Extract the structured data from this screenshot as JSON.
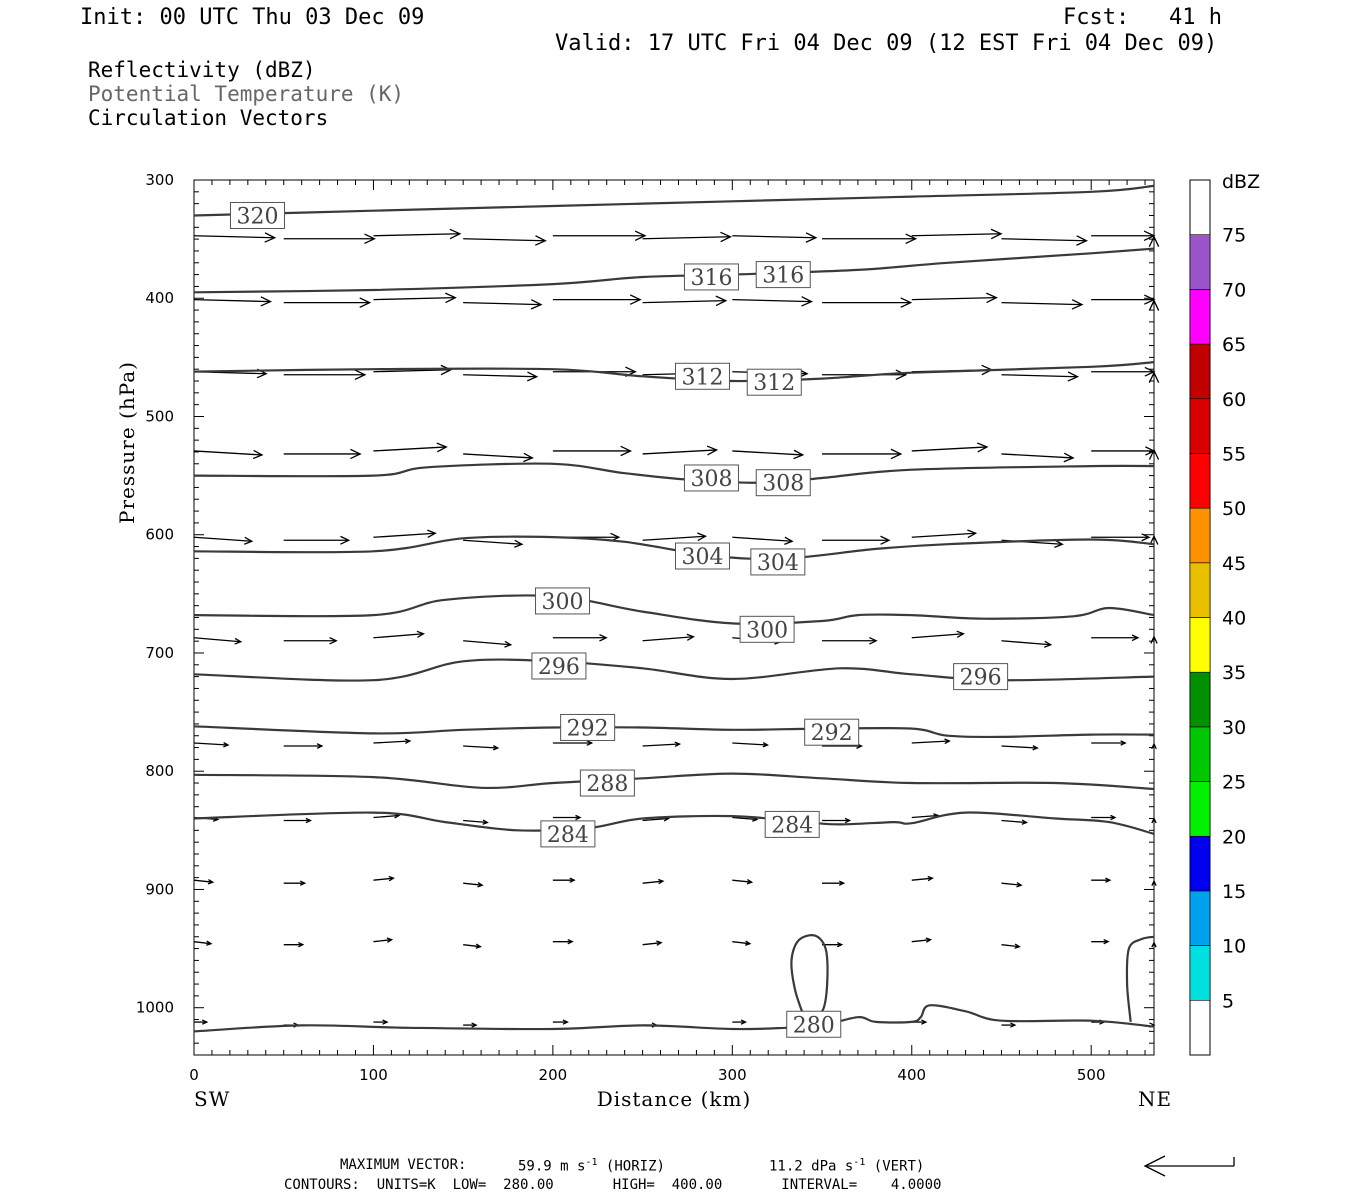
{
  "header": {
    "init": "Init: 00 UTC Thu 03 Dec 09",
    "fcst": "Fcst:   41 h",
    "valid": "Valid: 17 UTC Fri 04 Dec 09 (12 EST Fri 04 Dec 09)"
  },
  "fields": {
    "f1": "Reflectivity (dBZ)",
    "f2": "Potential Temperature (K)",
    "f3": "Circulation Vectors"
  },
  "footer": {
    "max_vector_label": "MAXIMUM VECTOR:",
    "max_horiz": "59.9 m s",
    "horiz_tag": "(HORIZ)",
    "max_vert": "11.2 dPa s",
    "vert_tag": "(VERT)",
    "exp": "-1",
    "contours": "CONTOURS:  UNITS=K  LOW=  280.00       HIGH=  400.00       INTERVAL=    4.0000"
  },
  "colorbar": {
    "unit": "dBZ",
    "labels": [
      "5",
      "10",
      "15",
      "20",
      "25",
      "30",
      "35",
      "40",
      "45",
      "50",
      "55",
      "60",
      "65",
      "70",
      "75"
    ],
    "colors": [
      "#00e0e0",
      "#00a0f0",
      "#0000f0",
      "#00f000",
      "#00c800",
      "#009000",
      "#ffff00",
      "#e8c000",
      "#ff9000",
      "#ff0000",
      "#d80000",
      "#c00000",
      "#ff00ff",
      "#9955c9"
    ]
  },
  "chart_data": {
    "type": "line",
    "title": "",
    "xlabel": "Distance (km)",
    "ylabel": "Pressure (hPa)",
    "xlim": [
      0,
      535
    ],
    "ylim": [
      1040,
      300
    ],
    "xticks": [
      0,
      100,
      200,
      300,
      400,
      500
    ],
    "yticks": [
      300,
      400,
      500,
      600,
      700,
      800,
      900,
      1000
    ],
    "x_end_labels": {
      "left": "SW",
      "right": "NE"
    },
    "contours": [
      {
        "level": 320,
        "pts": [
          [
            0,
            330
          ],
          [
            100,
            326
          ],
          [
            200,
            322
          ],
          [
            300,
            318
          ],
          [
            400,
            314
          ],
          [
            500,
            310
          ],
          [
            535,
            305
          ]
        ],
        "labels": [
          {
            "text": "320",
            "x": 22,
            "p": 330
          }
        ]
      },
      {
        "level": 316,
        "pts": [
          [
            0,
            395
          ],
          [
            100,
            393
          ],
          [
            200,
            388
          ],
          [
            250,
            382
          ],
          [
            300,
            380
          ],
          [
            370,
            376
          ],
          [
            420,
            370
          ],
          [
            500,
            362
          ],
          [
            535,
            358
          ]
        ],
        "labels": [
          {
            "text": "316",
            "x": 275,
            "p": 382
          },
          {
            "text": "316",
            "x": 315,
            "p": 380
          }
        ]
      },
      {
        "level": 312,
        "pts": [
          [
            0,
            462
          ],
          [
            100,
            460
          ],
          [
            200,
            460
          ],
          [
            250,
            466
          ],
          [
            300,
            470
          ],
          [
            350,
            468
          ],
          [
            400,
            463
          ],
          [
            500,
            458
          ],
          [
            535,
            454
          ]
        ],
        "labels": [
          {
            "text": "312",
            "x": 270,
            "p": 466
          },
          {
            "text": "312",
            "x": 310,
            "p": 471
          }
        ]
      },
      {
        "level": 308,
        "pts": [
          [
            0,
            550
          ],
          [
            100,
            550
          ],
          [
            130,
            543
          ],
          [
            200,
            540
          ],
          [
            240,
            548
          ],
          [
            280,
            554
          ],
          [
            320,
            556
          ],
          [
            350,
            552
          ],
          [
            400,
            545
          ],
          [
            500,
            542
          ],
          [
            535,
            542
          ]
        ],
        "labels": [
          {
            "text": "308",
            "x": 275,
            "p": 552
          },
          {
            "text": "308",
            "x": 315,
            "p": 556
          }
        ]
      },
      {
        "level": 304,
        "pts": [
          [
            0,
            614
          ],
          [
            100,
            614
          ],
          [
            150,
            603
          ],
          [
            200,
            602
          ],
          [
            240,
            606
          ],
          [
            290,
            618
          ],
          [
            330,
            620
          ],
          [
            380,
            612
          ],
          [
            420,
            608
          ],
          [
            500,
            604
          ],
          [
            535,
            608
          ]
        ],
        "labels": [
          {
            "text": "304",
            "x": 270,
            "p": 618
          },
          {
            "text": "304",
            "x": 312,
            "p": 623
          }
        ]
      },
      {
        "level": 300,
        "pts": [
          [
            0,
            668
          ],
          [
            100,
            668
          ],
          [
            140,
            655
          ],
          [
            200,
            652
          ],
          [
            250,
            665
          ],
          [
            300,
            675
          ],
          [
            350,
            673
          ],
          [
            370,
            668
          ],
          [
            400,
            668
          ],
          [
            440,
            671
          ],
          [
            490,
            669
          ],
          [
            510,
            662
          ],
          [
            535,
            668
          ]
        ],
        "labels": [
          {
            "text": "300",
            "x": 192,
            "p": 656
          },
          {
            "text": "300",
            "x": 306,
            "p": 680
          }
        ]
      },
      {
        "level": 296,
        "pts": [
          [
            0,
            718
          ],
          [
            100,
            723
          ],
          [
            150,
            707
          ],
          [
            200,
            707
          ],
          [
            250,
            713
          ],
          [
            300,
            722
          ],
          [
            360,
            713
          ],
          [
            400,
            718
          ],
          [
            450,
            723
          ],
          [
            535,
            720
          ]
        ],
        "labels": [
          {
            "text": "296",
            "x": 190,
            "p": 711
          },
          {
            "text": "296",
            "x": 425,
            "p": 720
          }
        ]
      },
      {
        "level": 292,
        "pts": [
          [
            0,
            762
          ],
          [
            100,
            768
          ],
          [
            150,
            765
          ],
          [
            200,
            763
          ],
          [
            250,
            763
          ],
          [
            300,
            765
          ],
          [
            350,
            764
          ],
          [
            400,
            764
          ],
          [
            420,
            770
          ],
          [
            450,
            771
          ],
          [
            500,
            769
          ],
          [
            535,
            769
          ]
        ],
        "labels": [
          {
            "text": "292",
            "x": 206,
            "p": 763
          },
          {
            "text": "292",
            "x": 342,
            "p": 767
          }
        ]
      },
      {
        "level": 288,
        "pts": [
          [
            0,
            803
          ],
          [
            100,
            805
          ],
          [
            160,
            814
          ],
          [
            200,
            810
          ],
          [
            250,
            806
          ],
          [
            300,
            802
          ],
          [
            350,
            806
          ],
          [
            400,
            810
          ],
          [
            480,
            810
          ],
          [
            535,
            815
          ]
        ],
        "labels": [
          {
            "text": "288",
            "x": 217,
            "p": 810
          }
        ]
      },
      {
        "level": 284,
        "pts": [
          [
            0,
            840
          ],
          [
            100,
            835
          ],
          [
            140,
            843
          ],
          [
            180,
            850
          ],
          [
            220,
            848
          ],
          [
            250,
            840
          ],
          [
            300,
            838
          ],
          [
            340,
            843
          ],
          [
            360,
            845
          ],
          [
            390,
            843
          ],
          [
            400,
            844
          ],
          [
            430,
            835
          ],
          [
            480,
            840
          ],
          [
            510,
            843
          ],
          [
            535,
            853
          ]
        ],
        "labels": [
          {
            "text": "284",
            "x": 195,
            "p": 853
          },
          {
            "text": "284",
            "x": 320,
            "p": 845
          }
        ]
      },
      {
        "level": 280,
        "pts": [
          [
            0,
            1020
          ],
          [
            60,
            1015
          ],
          [
            120,
            1017
          ],
          [
            200,
            1018
          ],
          [
            250,
            1015
          ],
          [
            300,
            1018
          ],
          [
            330,
            1017
          ],
          [
            350,
            1015
          ],
          [
            370,
            1008
          ],
          [
            380,
            1012
          ],
          [
            400,
            1012
          ],
          [
            405,
            1008
          ],
          [
            410,
            998
          ],
          [
            430,
            1003
          ],
          [
            450,
            1011
          ],
          [
            500,
            1011
          ],
          [
            535,
            1016
          ]
        ],
        "labels": [
          {
            "text": "280",
            "x": 332,
            "p": 1014
          }
        ]
      }
    ],
    "closed_contours": [
      {
        "level": 280,
        "pts": [
          [
            340,
            1008
          ],
          [
            335,
            985
          ],
          [
            333,
            960
          ],
          [
            337,
            943
          ],
          [
            346,
            939
          ],
          [
            352,
            950
          ],
          [
            353,
            975
          ],
          [
            351,
            1000
          ],
          [
            345,
            1012
          ]
        ]
      },
      {
        "level": 280,
        "pts": [
          [
            522,
            1012
          ],
          [
            520,
            980
          ],
          [
            521,
            950
          ],
          [
            528,
            942
          ],
          [
            535,
            940
          ]
        ]
      }
    ],
    "vector_rows": [
      {
        "p": 348,
        "dx": 95,
        "dp": -1
      },
      {
        "p": 402,
        "dx": 90,
        "dp": -1
      },
      {
        "p": 463,
        "dx": 85,
        "dp": -1
      },
      {
        "p": 530,
        "dx": 80,
        "dp": -2
      },
      {
        "p": 603,
        "dx": 68,
        "dp": -2
      },
      {
        "p": 688,
        "dx": 55,
        "dp": -2
      },
      {
        "p": 777,
        "dx": 40,
        "dp": -1
      },
      {
        "p": 840,
        "dx": 28,
        "dp": -1
      },
      {
        "p": 893,
        "dx": 22,
        "dp": -1
      },
      {
        "p": 945,
        "dx": 20,
        "dp": -1
      },
      {
        "p": 1013,
        "dx": 15,
        "dp": 0
      }
    ],
    "vector_x": [
      0,
      50,
      100,
      150,
      200,
      250,
      300,
      350,
      400,
      450,
      500,
      535
    ]
  }
}
